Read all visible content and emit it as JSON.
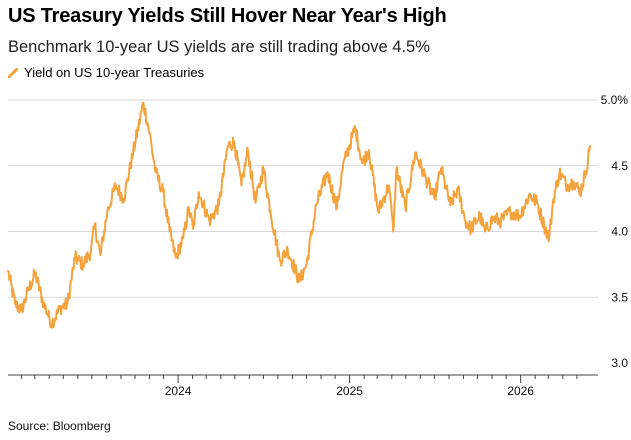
{
  "title": "US Treasury Yields Still Hover Near Year's High",
  "subtitle": "Benchmark 10-year US yields are still trading above 4.5%",
  "source": "Source: Bloomberg",
  "colors": {
    "series": "#f4a23c",
    "grid": "#d9d9d9",
    "axis": "#444444"
  },
  "chart_data": {
    "type": "line",
    "title": "US Treasury Yields Still Hover Near Year's High",
    "subtitle": "Benchmark 10-year US yields are still trading above 4.5%",
    "xlabel": "",
    "ylabel": "",
    "legend_placement": "top-left",
    "grid": true,
    "y_ticks": [
      {
        "value": 3.0,
        "label": "3.0"
      },
      {
        "value": 3.5,
        "label": "3.5"
      },
      {
        "value": 4.0,
        "label": "4.0"
      },
      {
        "value": 4.5,
        "label": "4.5"
      },
      {
        "value": 5.0,
        "label": "5.0%"
      }
    ],
    "ylim": [
      3.0,
      5.0
    ],
    "x_ticks": [
      {
        "value": "2024-01-01",
        "label": "2024"
      },
      {
        "value": "2025-01-01",
        "label": "2025"
      },
      {
        "value": "2026-01-01",
        "label": "2026"
      }
    ],
    "xlim": [
      "2023-01-03",
      "2026-05-29"
    ],
    "series": [
      {
        "name": "Yield on US 10-year Treasuries",
        "points": [
          [
            "2023-01-03",
            3.7
          ],
          [
            "2023-01-18",
            3.45
          ],
          [
            "2023-02-01",
            3.4
          ],
          [
            "2023-02-15",
            3.55
          ],
          [
            "2023-03-02",
            3.68
          ],
          [
            "2023-03-20",
            3.45
          ],
          [
            "2023-04-06",
            3.3
          ],
          [
            "2023-04-25",
            3.42
          ],
          [
            "2023-05-10",
            3.45
          ],
          [
            "2023-05-26",
            3.8
          ],
          [
            "2023-06-12",
            3.75
          ],
          [
            "2023-06-29",
            3.85
          ],
          [
            "2023-07-07",
            4.05
          ],
          [
            "2023-07-19",
            3.82
          ],
          [
            "2023-08-03",
            4.15
          ],
          [
            "2023-08-21",
            4.35
          ],
          [
            "2023-09-07",
            4.25
          ],
          [
            "2023-09-27",
            4.6
          ],
          [
            "2023-10-19",
            4.98
          ],
          [
            "2023-11-01",
            4.75
          ],
          [
            "2023-11-14",
            4.45
          ],
          [
            "2023-11-30",
            4.3
          ],
          [
            "2023-12-14",
            4.0
          ],
          [
            "2023-12-27",
            3.8
          ],
          [
            "2024-01-12",
            3.95
          ],
          [
            "2024-01-24",
            4.18
          ],
          [
            "2024-02-02",
            4.02
          ],
          [
            "2024-02-14",
            4.3
          ],
          [
            "2024-03-08",
            4.08
          ],
          [
            "2024-03-28",
            4.2
          ],
          [
            "2024-04-16",
            4.65
          ],
          [
            "2024-04-30",
            4.68
          ],
          [
            "2024-05-15",
            4.35
          ],
          [
            "2024-05-29",
            4.62
          ],
          [
            "2024-06-14",
            4.22
          ],
          [
            "2024-07-01",
            4.48
          ],
          [
            "2024-07-16",
            4.16
          ],
          [
            "2024-08-05",
            3.78
          ],
          [
            "2024-08-22",
            3.86
          ],
          [
            "2024-09-16",
            3.62
          ],
          [
            "2024-10-01",
            3.75
          ],
          [
            "2024-10-22",
            4.2
          ],
          [
            "2024-11-15",
            4.45
          ],
          [
            "2024-12-05",
            4.18
          ],
          [
            "2024-12-18",
            4.5
          ],
          [
            "2025-01-13",
            4.79
          ],
          [
            "2025-01-28",
            4.52
          ],
          [
            "2025-02-11",
            4.62
          ],
          [
            "2025-03-03",
            4.15
          ],
          [
            "2025-03-26",
            4.35
          ],
          [
            "2025-04-04",
            4.0
          ],
          [
            "2025-04-11",
            4.48
          ],
          [
            "2025-04-30",
            4.18
          ],
          [
            "2025-05-21",
            4.6
          ],
          [
            "2025-06-13",
            4.4
          ],
          [
            "2025-07-01",
            4.25
          ],
          [
            "2025-07-15",
            4.48
          ],
          [
            "2025-08-04",
            4.2
          ],
          [
            "2025-08-20",
            4.32
          ],
          [
            "2025-09-05",
            4.08
          ],
          [
            "2025-09-17",
            4.02
          ],
          [
            "2025-10-06",
            4.12
          ],
          [
            "2025-10-17",
            4.0
          ],
          [
            "2025-11-03",
            4.1
          ],
          [
            "2025-11-20",
            4.08
          ],
          [
            "2025-12-10",
            4.15
          ],
          [
            "2025-12-30",
            4.12
          ],
          [
            "2026-01-20",
            4.28
          ],
          [
            "2026-02-05",
            4.22
          ],
          [
            "2026-02-20",
            4.05
          ],
          [
            "2026-03-03",
            3.95
          ],
          [
            "2026-03-12",
            4.25
          ],
          [
            "2026-03-25",
            4.45
          ],
          [
            "2026-04-10",
            4.35
          ],
          [
            "2026-04-24",
            4.38
          ],
          [
            "2026-05-08",
            4.3
          ],
          [
            "2026-05-20",
            4.45
          ],
          [
            "2026-05-29",
            4.65
          ]
        ]
      }
    ]
  }
}
